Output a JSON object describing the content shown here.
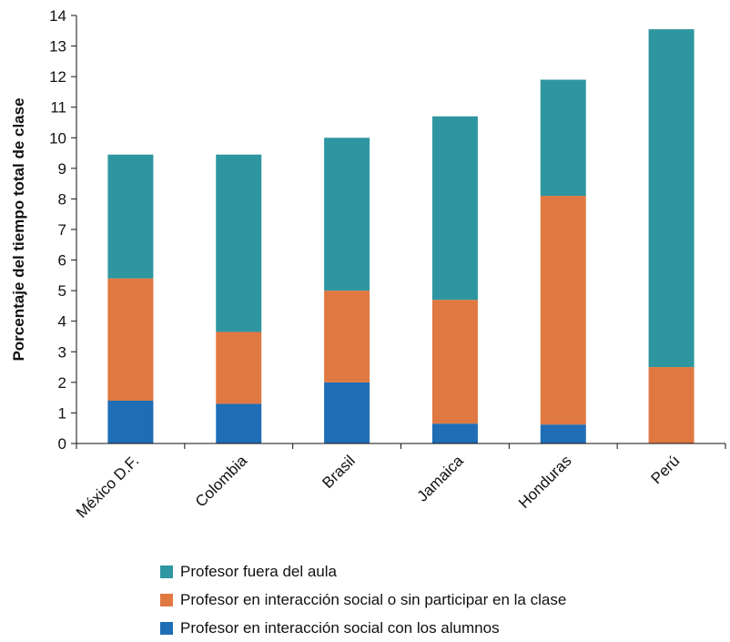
{
  "chart_data": {
    "type": "bar",
    "stacked": true,
    "title": "",
    "xlabel": "",
    "ylabel": "Porcentaje del tiempo total de clase",
    "ylim": [
      0,
      14
    ],
    "yticks": [
      0,
      1,
      2,
      3,
      4,
      5,
      6,
      7,
      8,
      9,
      10,
      11,
      12,
      13,
      14
    ],
    "categories": [
      "México D.F.",
      "Colombia",
      "Brasil",
      "Jamaica",
      "Honduras",
      "Perú"
    ],
    "series": [
      {
        "name": "Profesor en interacción social con los alumnos",
        "color": "#1f6db5",
        "values": [
          1.4,
          1.3,
          2.0,
          0.65,
          0.62,
          0.0
        ]
      },
      {
        "name": "Profesor en interacción social o sin participar en la clase",
        "color": "#e07841",
        "values": [
          4.0,
          2.35,
          3.0,
          4.05,
          7.48,
          2.5
        ]
      },
      {
        "name": "Profesor fuera del aula",
        "color": "#2e96a0",
        "values": [
          4.05,
          5.8,
          5.0,
          6.0,
          3.8,
          11.05
        ]
      }
    ],
    "legend_position": "bottom",
    "grid": false
  },
  "legend": [
    {
      "label": "Profesor fuera del aula",
      "color": "#2e96a0"
    },
    {
      "label": "Profesor en interacción social o sin participar en la clase",
      "color": "#e07841"
    },
    {
      "label": "Profesor en interacción social con los alumnos",
      "color": "#1f6db5"
    }
  ]
}
